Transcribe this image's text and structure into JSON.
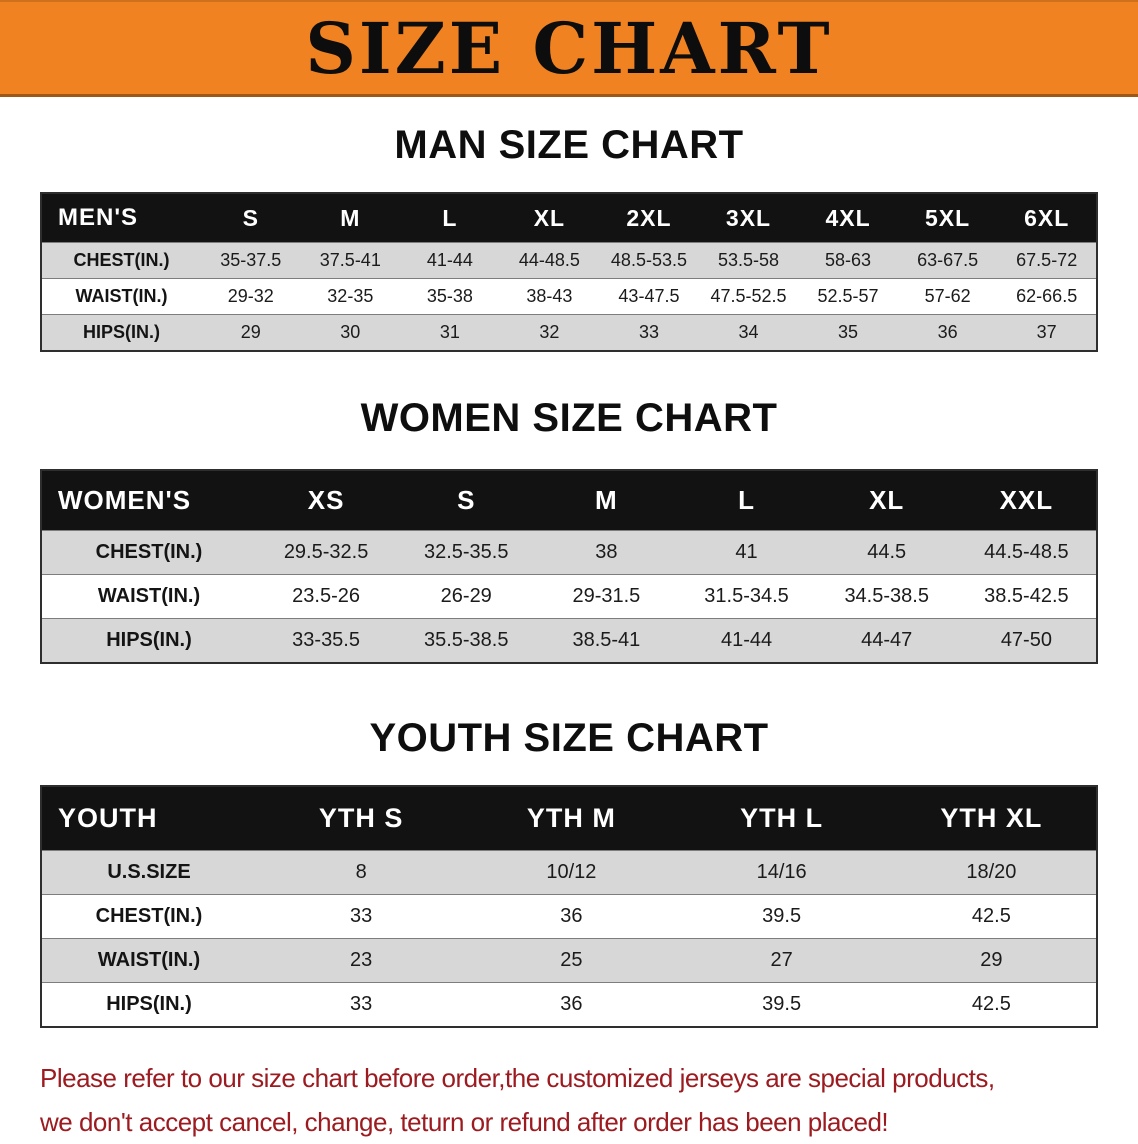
{
  "banner": {
    "title": "SIZE CHART"
  },
  "colors": {
    "banner_bg": "#f08222",
    "header_bg": "#121212",
    "row_alt": "#d7d7d7",
    "note_red": "#9c1b20"
  },
  "men": {
    "heading": "MAN SIZE CHART",
    "table": {
      "header": [
        "MEN'S",
        "S",
        "M",
        "L",
        "XL",
        "2XL",
        "3XL",
        "4XL",
        "5XL",
        "6XL"
      ],
      "rows": [
        [
          "CHEST(IN.)",
          "35-37.5",
          "37.5-41",
          "41-44",
          "44-48.5",
          "48.5-53.5",
          "53.5-58",
          "58-63",
          "63-67.5",
          "67.5-72"
        ],
        [
          "WAIST(IN.)",
          "29-32",
          "32-35",
          "35-38",
          "38-43",
          "43-47.5",
          "47.5-52.5",
          "52.5-57",
          "57-62",
          "62-66.5"
        ],
        [
          "HIPS(IN.)",
          "29",
          "30",
          "31",
          "32",
          "33",
          "34",
          "35",
          "36",
          "37"
        ]
      ]
    }
  },
  "women": {
    "heading": "WOMEN SIZE CHART",
    "table": {
      "header": [
        "WOMEN'S",
        "XS",
        "S",
        "M",
        "L",
        "XL",
        "XXL"
      ],
      "rows": [
        [
          "CHEST(IN.)",
          "29.5-32.5",
          "32.5-35.5",
          "38",
          "41",
          "44.5",
          "44.5-48.5"
        ],
        [
          "WAIST(IN.)",
          "23.5-26",
          "26-29",
          "29-31.5",
          "31.5-34.5",
          "34.5-38.5",
          "38.5-42.5"
        ],
        [
          "HIPS(IN.)",
          "33-35.5",
          "35.5-38.5",
          "38.5-41",
          "41-44",
          "44-47",
          "47-50"
        ]
      ]
    }
  },
  "youth": {
    "heading": "YOUTH SIZE CHART",
    "table": {
      "header": [
        "YOUTH",
        "YTH S",
        "YTH M",
        "YTH L",
        "YTH XL"
      ],
      "rows": [
        [
          "U.S.SIZE",
          "8",
          "10/12",
          "14/16",
          "18/20"
        ],
        [
          "CHEST(IN.)",
          "33",
          "36",
          "39.5",
          "42.5"
        ],
        [
          "WAIST(IN.)",
          "23",
          "25",
          "27",
          "29"
        ],
        [
          "HIPS(IN.)",
          "33",
          "36",
          "39.5",
          "42.5"
        ]
      ]
    }
  },
  "note": {
    "line1": "Please refer to our size chart before order,the customized jerseys are special products,",
    "line2": "we don't accept cancel, change, teturn or refund after order has been placed!"
  }
}
